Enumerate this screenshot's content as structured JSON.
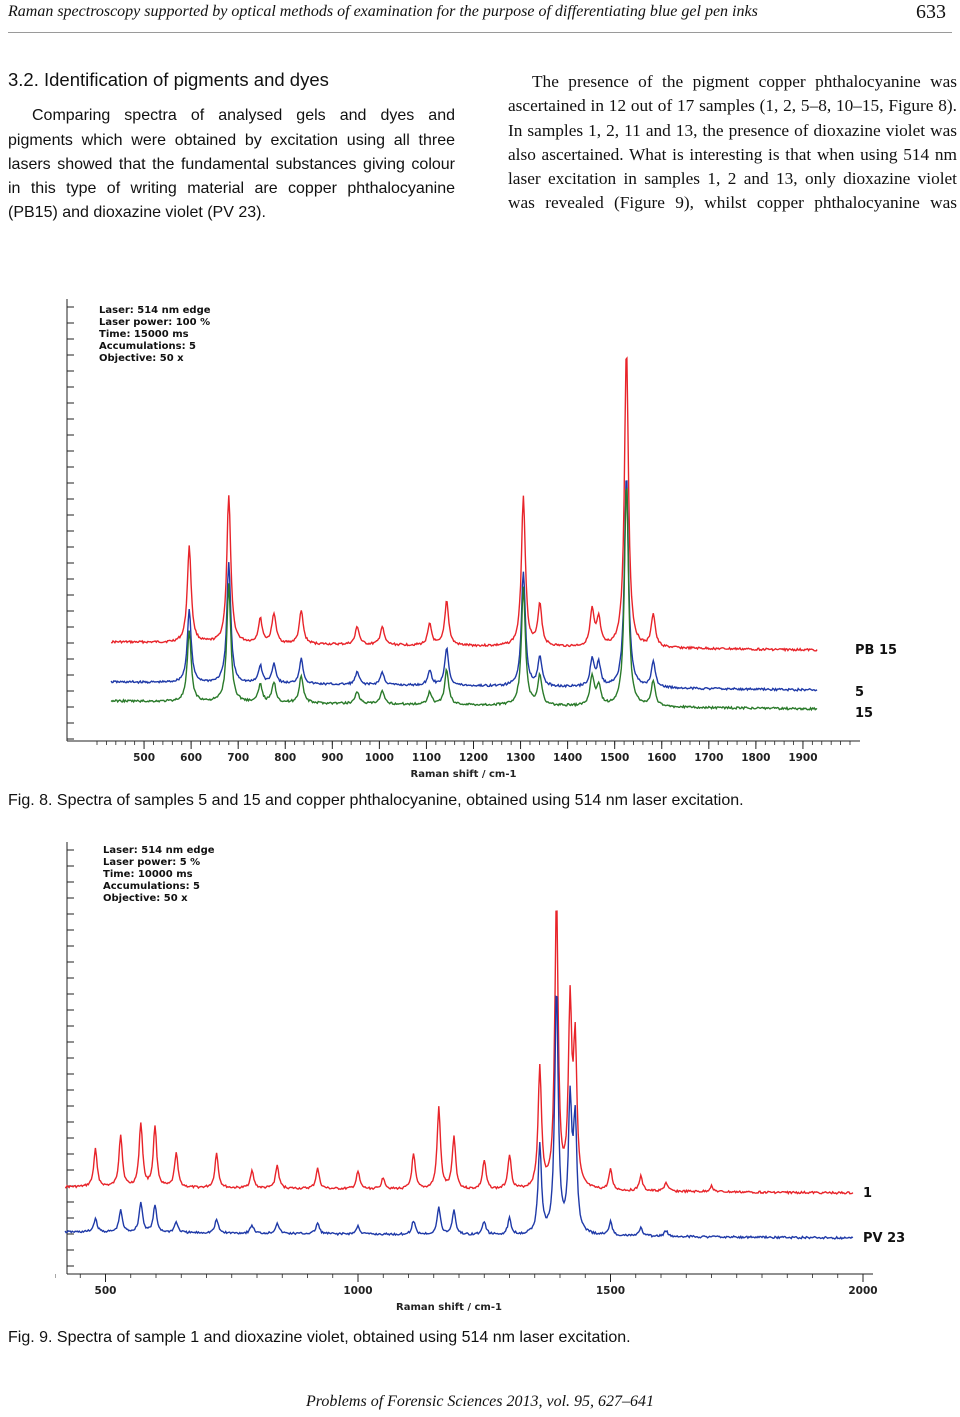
{
  "header": {
    "running_title": "Raman spectroscopy supported by optical methods of examination for the purpose of differentiating blue gel pen inks",
    "page_number": "633"
  },
  "section": {
    "heading": "3.2.  Identification of pigments and dyes",
    "left_paragraph": "Comparing spectra of analysed gels and dyes and pigments which were obtained by excitation using all three lasers showed that the fundamental substances giving colour in this type of writing material are copper phthalocyanine (PB15) and dioxazine violet (PV 23).",
    "right_paragraph": "The presence of the pigment copper phthalocyanine was ascertained in 12 out of 17 samples (1, 2, 5–8, 10–15, Figure 8). In samples 1, 2, 11 and 13, the presence of dioxazine violet was also ascertained. What is interesting is that when using 514 nm laser excitation in samples 1, 2 and 13, only dioxazine violet was revealed (Figure 9), whilst copper phthalocyanine was"
  },
  "figure8": {
    "caption": "Fig. 8. Spectra of samples 5 and 15 and copper phthalocyanine, obtained using 514 nm laser excitation.",
    "info": [
      "Laser: 514 nm edge",
      "Laser power: 100 %",
      "Time: 15000 ms",
      "Accumulations: 5",
      "Objective: 50 x"
    ],
    "colors": {
      "PB 15": "#e8242a",
      "5": "#1f3aa8",
      "15": "#2a7a2a"
    }
  },
  "figure9": {
    "caption": "Fig. 9. Spectra of sample 1 and dioxazine violet, obtained using 514 nm laser excitation.",
    "info": [
      "Laser: 514 nm edge",
      "Laser power: 5 %",
      "Time: 10000 ms",
      "Accumulations: 5",
      "Objective: 50 x"
    ],
    "colors": {
      "1": "#e8242a",
      "PV 23": "#1f3aa8"
    }
  },
  "chart_data": [
    {
      "type": "line",
      "xlabel": "Raman shift / cm-1",
      "ylabel": "",
      "xlim": [
        400,
        2000
      ],
      "x_ticks": [
        "500",
        "600",
        "700",
        "800",
        "900",
        "1000",
        "1100",
        "1200",
        "1300",
        "1400",
        "1500",
        "1600",
        "1700",
        "1800",
        "1900"
      ],
      "series": [
        {
          "name": "PB 15",
          "peaks": [
            [
              596,
              0.32
            ],
            [
              680,
              0.49
            ],
            [
              747,
              0.08
            ],
            [
              776,
              0.1
            ],
            [
              834,
              0.11
            ],
            [
              953,
              0.06
            ],
            [
              1006,
              0.06
            ],
            [
              1107,
              0.07
            ],
            [
              1143,
              0.15
            ],
            [
              1306,
              0.5
            ],
            [
              1341,
              0.14
            ],
            [
              1452,
              0.12
            ],
            [
              1466,
              0.09
            ],
            [
              1525,
              1.0
            ],
            [
              1582,
              0.11
            ]
          ]
        },
        {
          "name": "5",
          "peaks": [
            [
              596,
              0.29
            ],
            [
              680,
              0.48
            ],
            [
              747,
              0.07
            ],
            [
              776,
              0.08
            ],
            [
              834,
              0.1
            ],
            [
              953,
              0.05
            ],
            [
              1006,
              0.05
            ],
            [
              1107,
              0.06
            ],
            [
              1143,
              0.15
            ],
            [
              1306,
              0.46
            ],
            [
              1341,
              0.12
            ],
            [
              1452,
              0.11
            ],
            [
              1466,
              0.09
            ],
            [
              1525,
              0.86
            ],
            [
              1582,
              0.1
            ]
          ]
        },
        {
          "name": "15",
          "peaks": [
            [
              596,
              0.28
            ],
            [
              680,
              0.47
            ],
            [
              747,
              0.07
            ],
            [
              776,
              0.08
            ],
            [
              834,
              0.11
            ],
            [
              953,
              0.05
            ],
            [
              1006,
              0.05
            ],
            [
              1107,
              0.05
            ],
            [
              1143,
              0.14
            ],
            [
              1306,
              0.47
            ],
            [
              1341,
              0.12
            ],
            [
              1452,
              0.12
            ],
            [
              1466,
              0.08
            ],
            [
              1525,
              0.9
            ],
            [
              1582,
              0.1
            ]
          ]
        }
      ]
    },
    {
      "type": "line",
      "xlabel": "Raman shift / cm-1",
      "ylabel": "",
      "xlim": [
        400,
        2000
      ],
      "x_ticks": [
        "500",
        "1000",
        "1500",
        "2000"
      ],
      "series": [
        {
          "name": "1",
          "peaks": [
            [
              480,
              0.13
            ],
            [
              530,
              0.18
            ],
            [
              570,
              0.22
            ],
            [
              598,
              0.21
            ],
            [
              640,
              0.12
            ],
            [
              720,
              0.12
            ],
            [
              790,
              0.06
            ],
            [
              840,
              0.08
            ],
            [
              920,
              0.07
            ],
            [
              1000,
              0.06
            ],
            [
              1050,
              0.04
            ],
            [
              1110,
              0.12
            ],
            [
              1160,
              0.28
            ],
            [
              1190,
              0.18
            ],
            [
              1250,
              0.1
            ],
            [
              1300,
              0.12
            ],
            [
              1360,
              0.42
            ],
            [
              1393,
              1.0
            ],
            [
              1420,
              0.62
            ],
            [
              1430,
              0.48
            ],
            [
              1500,
              0.07
            ],
            [
              1560,
              0.05
            ],
            [
              1610,
              0.03
            ],
            [
              1700,
              0.02
            ]
          ]
        },
        {
          "name": "PV 23",
          "peaks": [
            [
              480,
              0.05
            ],
            [
              530,
              0.08
            ],
            [
              570,
              0.11
            ],
            [
              598,
              0.1
            ],
            [
              640,
              0.04
            ],
            [
              720,
              0.05
            ],
            [
              790,
              0.03
            ],
            [
              840,
              0.04
            ],
            [
              920,
              0.04
            ],
            [
              1000,
              0.03
            ],
            [
              1110,
              0.05
            ],
            [
              1160,
              0.1
            ],
            [
              1190,
              0.09
            ],
            [
              1250,
              0.05
            ],
            [
              1300,
              0.06
            ],
            [
              1360,
              0.33
            ],
            [
              1393,
              0.92
            ],
            [
              1420,
              0.48
            ],
            [
              1430,
              0.41
            ],
            [
              1500,
              0.05
            ],
            [
              1560,
              0.03
            ],
            [
              1610,
              0.02
            ]
          ]
        }
      ]
    }
  ],
  "footer": {
    "text": "Problems of Forensic Sciences 2013, vol. 95, 627–641"
  }
}
